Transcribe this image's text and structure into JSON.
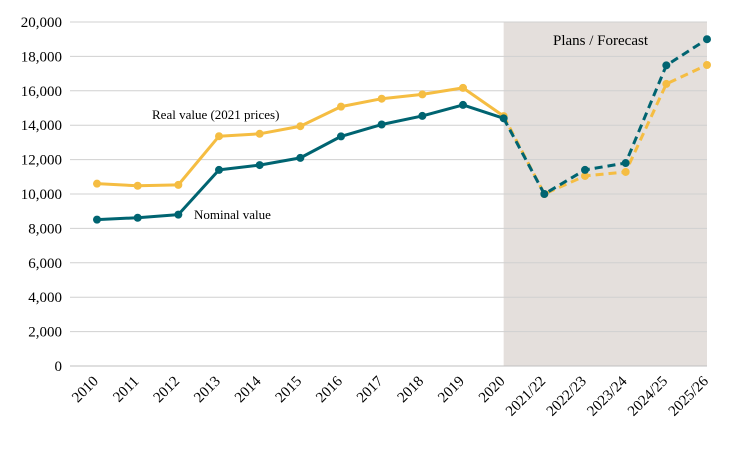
{
  "chart_data": {
    "type": "line",
    "categories": [
      "2010",
      "2011",
      "2012",
      "2013",
      "2014",
      "2015",
      "2016",
      "2017",
      "2018",
      "2019",
      "2020",
      "2021/22",
      "2022/23",
      "2023/24",
      "2024/25",
      "2025/26"
    ],
    "ylim": [
      0,
      20000
    ],
    "yticks": [
      0,
      2000,
      4000,
      6000,
      8000,
      10000,
      12000,
      14000,
      16000,
      18000,
      20000
    ],
    "ytick_labels": [
      "0",
      "2,000",
      "4,000",
      "6,000",
      "8,000",
      "10,000",
      "12,000",
      "14,000",
      "16,000",
      "18,000",
      "20,000"
    ],
    "grid": "horizontal",
    "forecast": {
      "label": "Plans / Forecast",
      "start": "2020",
      "end": "2025/26",
      "color": "#e4dfdc"
    },
    "series": [
      {
        "name": "Real value (2021 prices)",
        "color": "#f5bd42",
        "values": [
          10600,
          10480,
          10530,
          13360,
          13500,
          13940,
          15080,
          15540,
          15790,
          16170,
          14530,
          10000,
          11050,
          11280,
          16400,
          17500
        ]
      },
      {
        "name": "Nominal value",
        "color": "#006471",
        "values": [
          8510,
          8620,
          8800,
          11400,
          11680,
          12100,
          13350,
          14040,
          14540,
          15180,
          14400,
          10000,
          11400,
          11800,
          17480,
          19000
        ]
      }
    ],
    "solid_through": "2020"
  }
}
